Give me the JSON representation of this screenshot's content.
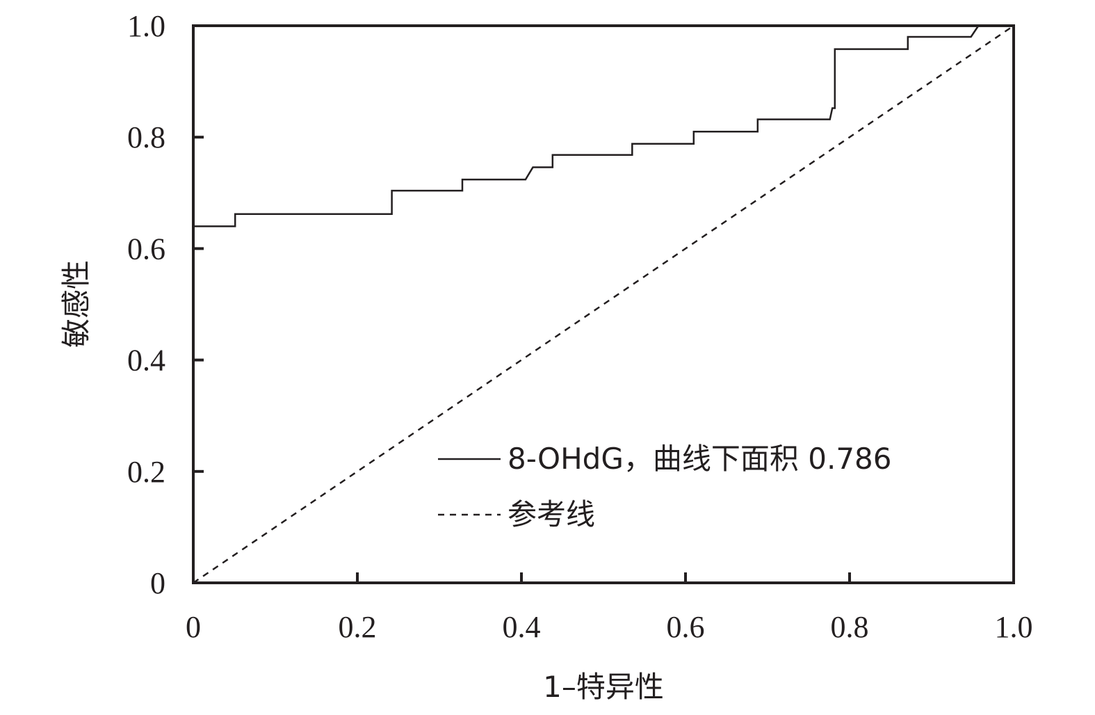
{
  "chart_data": {
    "type": "line",
    "title": "",
    "xlabel": "1–特异性",
    "ylabel": "敏感性",
    "xlim": [
      0,
      1.0
    ],
    "ylim": [
      0,
      1.0
    ],
    "x_ticks": [
      0,
      0.2,
      0.4,
      0.6,
      0.8,
      1.0
    ],
    "x_tick_labels": [
      "0",
      "0.2",
      "0.4",
      "0.6",
      "0.8",
      "1.0"
    ],
    "y_ticks": [
      0,
      0.2,
      0.4,
      0.6,
      0.8,
      1.0
    ],
    "y_tick_labels": [
      "0",
      "0.2",
      "0.4",
      "0.6",
      "0.8",
      "1.0"
    ],
    "grid": false,
    "legend_position": "lower-right",
    "series": [
      {
        "name": "8-OHdG，曲线下面积 0.786",
        "style": "solid",
        "color": "#231f20",
        "x": [
          0,
          0.051,
          0.051,
          0.242,
          0.242,
          0.328,
          0.328,
          0.405,
          0.414,
          0.438,
          0.438,
          0.535,
          0.535,
          0.61,
          0.61,
          0.688,
          0.688,
          0.776,
          0.779,
          0.782,
          0.782,
          0.871,
          0.871,
          0.948,
          0.957
        ],
        "y": [
          0.64,
          0.64,
          0.662,
          0.662,
          0.704,
          0.704,
          0.724,
          0.724,
          0.746,
          0.746,
          0.768,
          0.768,
          0.788,
          0.788,
          0.81,
          0.81,
          0.832,
          0.832,
          0.852,
          0.852,
          0.958,
          0.958,
          0.98,
          0.98,
          1.0
        ]
      },
      {
        "name": "参考线",
        "style": "dashed",
        "color": "#231f20",
        "x": [
          0,
          1.0
        ],
        "y": [
          0,
          1.0
        ]
      }
    ]
  }
}
